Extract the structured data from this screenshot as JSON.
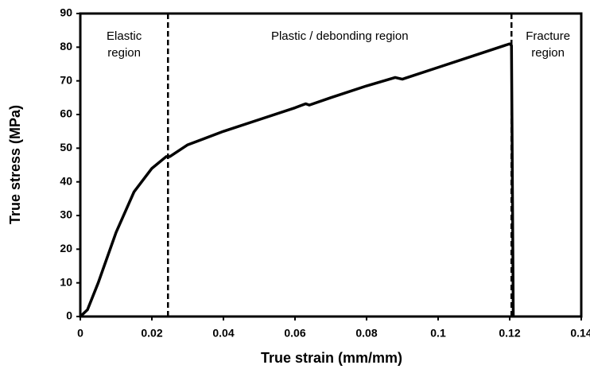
{
  "chart_data": {
    "type": "line",
    "xlabel": "True strain (mm/mm)",
    "ylabel": "True stress (MPa)",
    "x": [
      0,
      0.002,
      0.005,
      0.01,
      0.015,
      0.02,
      0.024,
      0.025,
      0.03,
      0.04,
      0.05,
      0.06,
      0.063,
      0.064,
      0.07,
      0.08,
      0.088,
      0.09,
      0.1,
      0.11,
      0.12,
      0.1205,
      0.121
    ],
    "series": [
      {
        "name": "True stress",
        "color": "#000000",
        "values": [
          0,
          2,
          10,
          25,
          37,
          44,
          47.5,
          47.5,
          51,
          55,
          58.5,
          62,
          63.2,
          62.8,
          65,
          68.5,
          71,
          70.5,
          74,
          77.5,
          81,
          80.5,
          0
        ]
      }
    ],
    "xlim": [
      0,
      0.14
    ],
    "xticks": [
      0,
      0.02,
      0.04,
      0.06,
      0.08,
      0.1,
      0.12,
      0.14
    ],
    "ylim": [
      0,
      90
    ],
    "yticks": [
      0,
      10,
      20,
      30,
      40,
      50,
      60,
      70,
      80,
      90
    ],
    "grid": false,
    "region_boundaries": [
      0.0245,
      0.1205
    ],
    "annotations": [
      {
        "lines": [
          "Elastic",
          "region"
        ]
      },
      {
        "lines": [
          "Plastic / debonding region"
        ]
      },
      {
        "lines": [
          "Fracture",
          "region"
        ]
      }
    ]
  }
}
